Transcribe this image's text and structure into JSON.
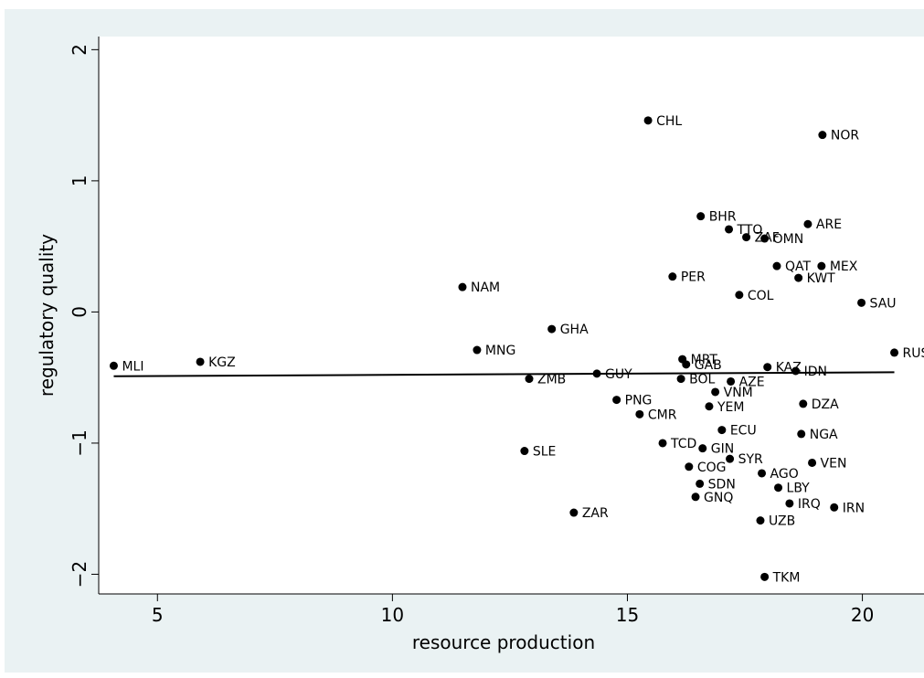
{
  "chart_data": {
    "type": "scatter",
    "x_label": "resource production",
    "y_label": "regulatory quality",
    "xlim": [
      3.75,
      21.0
    ],
    "ylim": [
      -2.15,
      2.1
    ],
    "xticks": [
      5,
      10,
      15,
      20
    ],
    "yticks": [
      {
        "value": -2,
        "label": "−2"
      },
      {
        "value": -1,
        "label": "−1"
      },
      0,
      1,
      2
    ],
    "color": "#000000",
    "labels": [
      "MLI",
      "KGZ",
      "NAM",
      "MNG",
      "GHA",
      "ZMB",
      "SLE",
      "ZAR",
      "GUY",
      "PNG",
      "CMR",
      "CHL",
      "PER",
      "TCD",
      "MRT",
      "GAB",
      "BOL",
      "BHR",
      "GIN",
      "COG",
      "SDN",
      "GNQ",
      "YEM",
      "VNM",
      "ECU",
      "TTO",
      "AZE",
      "SYR",
      "ZAF",
      "COL",
      "OMN",
      "AGO",
      "UZB",
      "TKM",
      "KAZ",
      "LBY",
      "QAT",
      "IRQ",
      "KWT",
      "IDN",
      "DZA",
      "NGA",
      "ARE",
      "NOR",
      "MEX",
      "VEN",
      "IRN",
      "SAU",
      "RUS"
    ],
    "x": [
      4.07,
      5.91,
      11.49,
      11.8,
      13.39,
      12.91,
      12.81,
      13.86,
      14.35,
      14.77,
      15.26,
      15.44,
      15.96,
      15.75,
      16.17,
      16.25,
      16.14,
      16.56,
      16.6,
      16.31,
      16.54,
      16.45,
      16.74,
      16.87,
      17.01,
      17.16,
      17.2,
      17.18,
      17.53,
      17.38,
      17.92,
      17.86,
      17.83,
      17.92,
      17.98,
      18.21,
      18.18,
      18.45,
      18.64,
      18.58,
      18.74,
      18.7,
      18.84,
      19.15,
      19.13,
      18.93,
      19.4,
      19.98,
      20.68
    ],
    "values": [
      -0.41,
      -0.38,
      0.19,
      -0.29,
      -0.13,
      -0.51,
      -1.06,
      -1.53,
      -0.47,
      -0.67,
      -0.78,
      1.46,
      0.27,
      -1.0,
      -0.36,
      -0.4,
      -0.51,
      0.73,
      -1.04,
      -1.18,
      -1.31,
      -1.41,
      -0.72,
      -0.61,
      -0.9,
      0.63,
      -0.53,
      -1.12,
      0.57,
      0.13,
      0.56,
      -1.23,
      -1.59,
      -2.02,
      -0.42,
      -1.34,
      0.35,
      -1.46,
      0.26,
      -0.45,
      -0.7,
      -0.93,
      0.67,
      1.35,
      0.35,
      -1.15,
      -1.49,
      0.07,
      -0.31
    ],
    "fit": {
      "x": [
        4.07,
        20.68
      ],
      "values": [
        -0.49,
        -0.46
      ]
    }
  }
}
